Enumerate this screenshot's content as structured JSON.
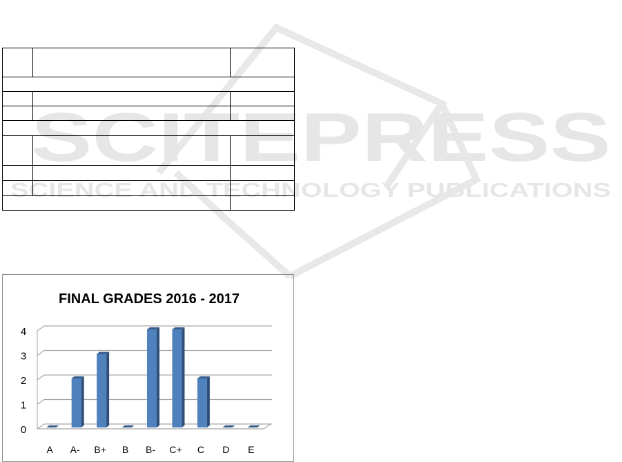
{
  "watermark": {
    "brand": "SCITEPRESS",
    "tagline": "SCIENCE AND TECHNOLOGY PUBLICATIONS",
    "color": "#e6e6e6"
  },
  "table": {
    "rows": [
      {
        "type": "three-col",
        "cells": [
          "",
          "",
          ""
        ]
      },
      {
        "type": "span",
        "cells": [
          ""
        ]
      },
      {
        "type": "three-col",
        "cells": [
          "",
          "",
          ""
        ]
      },
      {
        "type": "three-col",
        "cells": [
          "",
          "",
          ""
        ]
      },
      {
        "type": "span",
        "cells": [
          ""
        ]
      },
      {
        "type": "three-col",
        "cells": [
          "",
          "",
          ""
        ]
      },
      {
        "type": "three-col",
        "cells": [
          "",
          "",
          ""
        ]
      },
      {
        "type": "three-col",
        "cells": [
          "",
          "",
          ""
        ]
      },
      {
        "type": "two-col",
        "cells": [
          "",
          ""
        ]
      }
    ]
  },
  "chart_data": {
    "type": "bar",
    "title": "FINAL GRADES 2016 - 2017",
    "categories": [
      "A",
      "A-",
      "B+",
      "B",
      "B-",
      "C+",
      "C",
      "D",
      "E"
    ],
    "values": [
      0,
      2,
      3,
      0,
      4,
      4,
      2,
      0,
      0
    ],
    "yticks": [
      "0",
      "1",
      "2",
      "3",
      "4"
    ],
    "ylim": [
      0,
      4
    ],
    "grid": true,
    "style": "3d-column",
    "bar_color": "#4f81bd",
    "legend": "none"
  }
}
